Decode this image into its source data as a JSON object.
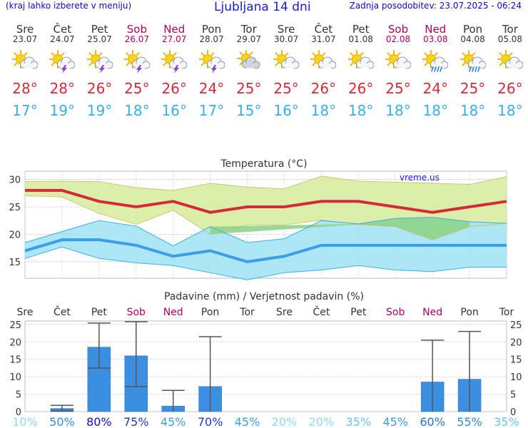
{
  "header": {
    "menu_hint": "(kraj lahko izberete v meniju)",
    "title": "Ljubljana 14 dni",
    "updated": "Zadnja posodobitev: 23.07.2025 - 06:24"
  },
  "forecast": [
    {
      "day": "Sre",
      "date": "23.07",
      "weekend": false,
      "icon": "sun-cloud-icon",
      "max": "28°",
      "min": "17°"
    },
    {
      "day": "Čet",
      "date": "24.07",
      "weekend": false,
      "icon": "thunderstorm-sun-icon",
      "max": "28°",
      "min": "19°"
    },
    {
      "day": "Pet",
      "date": "25.07",
      "weekend": false,
      "icon": "thunderstorm-sun-icon",
      "max": "26°",
      "min": "19°"
    },
    {
      "day": "Sob",
      "date": "26.07",
      "weekend": true,
      "icon": "thunderstorm-sun-icon",
      "max": "25°",
      "min": "18°"
    },
    {
      "day": "Ned",
      "date": "27.07",
      "weekend": true,
      "icon": "thunderstorm-sun-icon",
      "max": "26°",
      "min": "16°"
    },
    {
      "day": "Pon",
      "date": "28.07",
      "weekend": false,
      "icon": "thunderstorm-sun-icon",
      "max": "24°",
      "min": "17°"
    },
    {
      "day": "Tor",
      "date": "29.07",
      "weekend": false,
      "icon": "cloudy-sun-icon",
      "max": "25°",
      "min": "15°"
    },
    {
      "day": "Sre",
      "date": "30.07",
      "weekend": false,
      "icon": "sun-cloud-icon",
      "max": "25°",
      "min": "16°"
    },
    {
      "day": "Čet",
      "date": "31.07",
      "weekend": false,
      "icon": "sun-cloud-icon",
      "max": "26°",
      "min": "18°"
    },
    {
      "day": "Pet",
      "date": "01.08",
      "weekend": false,
      "icon": "sun-cloud-icon",
      "max": "26°",
      "min": "18°"
    },
    {
      "day": "Sob",
      "date": "02.08",
      "weekend": true,
      "icon": "sun-cloud-icon",
      "max": "25°",
      "min": "18°"
    },
    {
      "day": "Ned",
      "date": "03.08",
      "weekend": true,
      "icon": "rain-sun-icon",
      "max": "24°",
      "min": "18°"
    },
    {
      "day": "Pon",
      "date": "04.08",
      "weekend": false,
      "icon": "rain-sun-icon",
      "max": "25°",
      "min": "18°"
    },
    {
      "day": "Tor",
      "date": "05.08",
      "weekend": false,
      "icon": "sun-cloud-icon",
      "max": "26°",
      "min": "18°"
    }
  ],
  "colors": {
    "weekend": "#b0005a",
    "max_line": "#d42a3a",
    "min_line": "#3a9ee8",
    "max_band": "#d6ec9a",
    "min_band": "#9fe3f4",
    "overlap_band": "#8fd48a",
    "bar": "#3a8fe0",
    "err": "#555555"
  },
  "chart_data": [
    {
      "type": "line",
      "title": "Temperatura (°C)",
      "watermark": "vreme.us",
      "categories": [
        "23.07",
        "24.07",
        "25.07",
        "26.07",
        "27.07",
        "28.07",
        "29.07",
        "30.07",
        "31.07",
        "01.08",
        "02.08",
        "03.08",
        "04.08",
        "05.08"
      ],
      "ylim": [
        12,
        31.5
      ],
      "yticks": [
        15,
        20,
        25,
        30
      ],
      "series": [
        {
          "name": "max",
          "values": [
            28,
            28,
            26,
            25,
            26,
            24,
            25,
            25,
            26,
            26,
            25,
            24,
            25,
            26
          ]
        },
        {
          "name": "max_upper",
          "values": [
            29.6,
            29.7,
            29.6,
            28.5,
            28.0,
            29.3,
            28.6,
            28.3,
            30.6,
            29.7,
            29.5,
            29.3,
            29.1,
            30.5
          ]
        },
        {
          "name": "max_lower",
          "values": [
            27.0,
            26.8,
            23.8,
            21.8,
            24.4,
            20.0,
            21.7,
            21.7,
            22.6,
            21.8,
            21.4,
            19.0,
            21.4,
            22.0
          ]
        },
        {
          "name": "min",
          "values": [
            17,
            19,
            19,
            18,
            16,
            17,
            15,
            16,
            18,
            18,
            18,
            18,
            18,
            18
          ]
        },
        {
          "name": "min_upper",
          "values": [
            18.5,
            20.5,
            22.5,
            21.5,
            17.9,
            21.4,
            18.5,
            19.2,
            22.5,
            21.9,
            22.9,
            23.1,
            22.3,
            22.0
          ]
        },
        {
          "name": "min_lower",
          "values": [
            15.6,
            17.7,
            15.6,
            14.8,
            14.3,
            13.0,
            11.7,
            13.0,
            13.5,
            14.3,
            13.5,
            13.2,
            14.0,
            14.0
          ]
        }
      ]
    },
    {
      "type": "bar",
      "title": "Padavine (mm) / Verjetnost padavin (%)",
      "categories": [
        "Sre",
        "Čet",
        "Pet",
        "Sob",
        "Ned",
        "Pon",
        "Tor",
        "Sre",
        "Čet",
        "Pet",
        "Sob",
        "Ned",
        "Pon",
        "Tor"
      ],
      "weekend": [
        false,
        false,
        false,
        true,
        true,
        false,
        false,
        false,
        false,
        false,
        true,
        true,
        false,
        false
      ],
      "ylim": [
        0,
        26
      ],
      "yticks": [
        0,
        5,
        10,
        15,
        20,
        25
      ],
      "values": [
        0,
        0.9,
        18.5,
        16.0,
        1.6,
        7.2,
        0,
        0,
        0,
        0,
        0,
        8.5,
        9.3,
        0
      ],
      "err_low": [
        null,
        0.2,
        12.5,
        7.2,
        0,
        0,
        null,
        null,
        null,
        null,
        null,
        0,
        0,
        null
      ],
      "err_high": [
        null,
        1.8,
        25.4,
        25.8,
        6.1,
        21.5,
        null,
        null,
        null,
        null,
        null,
        20.5,
        23.0,
        null
      ],
      "probability": [
        "10%",
        "50%",
        "80%",
        "75%",
        "45%",
        "70%",
        "45%",
        "20%",
        "20%",
        "35%",
        "45%",
        "60%",
        "55%",
        "35%"
      ],
      "probability_colors": [
        "#8fd8f2",
        "#2a8fd8",
        "#1010b0",
        "#1a3ac0",
        "#3a9ee8",
        "#1a3ac0",
        "#3a9ee8",
        "#8fd8f2",
        "#8fd8f2",
        "#6ac4ee",
        "#3a9ee8",
        "#2a6fd0",
        "#2a8fd8",
        "#6ac4ee"
      ]
    }
  ]
}
